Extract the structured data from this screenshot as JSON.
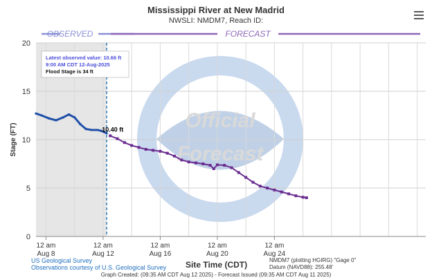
{
  "header": {
    "title": "Mississippi River at New Madrid",
    "subtitle": "NWSLI: NMDM7, Reach ID:"
  },
  "menu_icon": "hamburger-menu-icon",
  "colors": {
    "observed": "#1f4fa8",
    "forecast": "#6a2c91",
    "observed_band": "#8a8fd6",
    "forecast_band": "#8e67b8",
    "observed_shade": "#e6e6e6",
    "latest_marker": "#2a79b8"
  },
  "info_box": {
    "latest_value": "Latest observed value: 10.66 ft",
    "latest_time": "9:00 AM CDT 12-Aug-2025",
    "flood_stage": "Flood Stage is 34 ft"
  },
  "chart_data": {
    "type": "line",
    "title": "Mississippi River at New Madrid",
    "ylabel": "Stage (FT)",
    "xlabel": "Site Time (CDT)",
    "ylim": [
      0,
      20
    ],
    "yticks": [
      0,
      5,
      10,
      15,
      20
    ],
    "grid": true,
    "xlim_days": [
      -0.7,
      26.6
    ],
    "xticks": [
      {
        "day": 0,
        "line1": "12 am",
        "line2": "Aug 8"
      },
      {
        "day": 4,
        "line1": "12 am",
        "line2": "Aug 12"
      },
      {
        "day": 8,
        "line1": "12 am",
        "line2": "Aug 16"
      },
      {
        "day": 12,
        "line1": "12 am",
        "line2": "Aug 20"
      },
      {
        "day": 16,
        "line1": "12 am",
        "line2": "Aug 24"
      }
    ],
    "observed_label": "OBSERVED",
    "forecast_label": "FORECAST",
    "latest_annotation": "10.40 ft",
    "series": [
      {
        "name": "OBSERVED",
        "x": [
          -0.7,
          -0.3,
          0.2,
          0.7,
          1.2,
          1.6,
          2.0,
          2.4,
          2.8,
          3.2,
          3.6,
          3.9,
          4.25
        ],
        "y": [
          12.7,
          12.5,
          12.2,
          12.0,
          12.3,
          12.6,
          12.3,
          11.6,
          11.1,
          11.0,
          11.0,
          10.9,
          10.66
        ]
      },
      {
        "name": "FORECAST",
        "x": [
          4.5,
          5.0,
          5.5,
          6.0,
          6.5,
          7.0,
          7.5,
          8.0,
          8.5,
          9.0,
          9.5,
          10.0,
          10.5,
          11.0,
          11.5,
          11.75,
          12.0,
          12.5,
          13.0,
          13.5,
          14.0,
          14.5,
          15.0,
          15.5,
          16.0,
          16.5,
          17.0,
          17.5,
          18.0,
          18.25
        ],
        "y": [
          10.4,
          10.1,
          9.7,
          9.4,
          9.2,
          9.0,
          8.9,
          8.8,
          8.6,
          8.3,
          7.9,
          7.7,
          7.6,
          7.5,
          7.35,
          7.0,
          7.4,
          7.35,
          7.1,
          6.6,
          6.1,
          5.6,
          5.2,
          5.0,
          4.8,
          4.6,
          4.4,
          4.2,
          4.05,
          4.0
        ]
      }
    ]
  },
  "footer": {
    "xaxis_title": "Site Time (CDT)",
    "left_line1": "US Geological Survey",
    "left_line2": "Observations courtesy of U.S. Geological Survey",
    "right_line1": "NMDM7 (plotting HGIRG) \"Gage 0\"",
    "right_line2": "Datum (NAVD88): 255.48'",
    "created": "Graph Created: (09:35 AM CDT Aug 12 2025) - Forecast Issued (09:35 AM CDT Aug 11 2025)"
  }
}
